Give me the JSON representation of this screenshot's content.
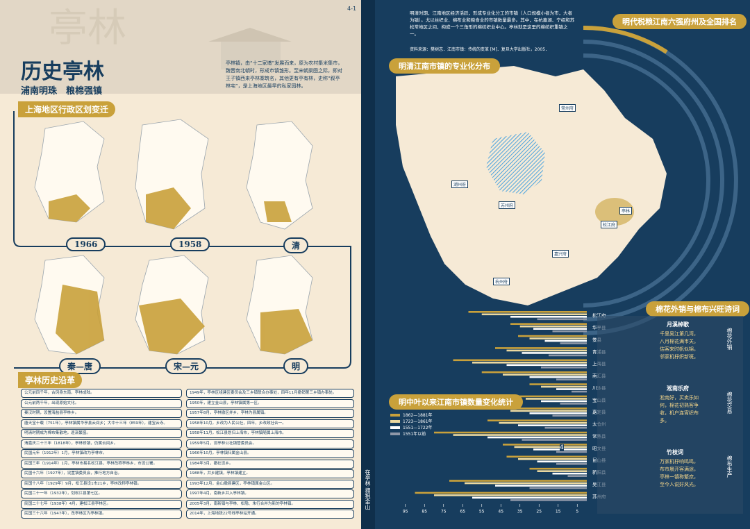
{
  "left_page": {
    "title": "历史亭林",
    "subtitle": "浦南明珠　粮棉强镇",
    "intro": "亭林镇，由“十二家墩”发展而来，原为农村集米集市，魏晋南北朝时，形成市镇雏形。至宋朝渠图之际，即对王子镇西来亭林寨筑名，其他更有亭有林，史称“叙亭林宅”，是上海地区最早的私家园林。",
    "page_number": "4-1",
    "maps_section": {
      "title": "上海地区行政区划变迁",
      "map_labels": [
        "1966",
        "1958",
        "清",
        "秦—唐",
        "宋—元",
        "明"
      ]
    },
    "history_section": {
      "title": "亭林历史沿革",
      "left_rows": [
        "公元前四千年，古冈身东南，亭林成陆。",
        "公元前两千年，出现原始文化。",
        "秦汉时期，设置海盐县亭林乡。",
        "唐天宝十载（751年），亭林镇属华亭县云间乡；大中十三年（859年），建宝云寺。",
        "明清时期成为棉布集散地，逐渐繁盛。",
        "清嘉庆二十三年（1818年），亭林修镇，仍属云间乡。",
        "民国元年（1912年）1月，亭林镇改为亭林市。",
        "民国三年（1914年）1月，亭林市易名松江县，亭林改称亭林乡，市设公署。",
        "民国十六年（1927年），设置镇委员会，推行地方自治。",
        "民国十八年（1929年）9月，松江县设1市21乡，亭林改称亭林镇。",
        "民国二十一年（1932年），划松江县第七区。",
        "民国二十七年（1938年）4月，建松江县亭林区。",
        "民国三十六年（1947年），改亭林区为亭林镇。"
      ],
      "right_rows": [
        "1949年，亭林区组建区委员会及三乡镇联合办事处，四年11月撤销第三乡镇办事处。",
        "1950年，建立金山县，亭林镇属第一区。",
        "1957年8月，亭林撤区并乡，亭林为县属镇。",
        "1958年10月，乡改为人民公社，四年，乡改政社合一。",
        "1958年11月，松江县划归上海市，亭林镇随属上海市。",
        "1959年5月，设亭林公社镇管委员会。",
        "1966年10月，亭林镇归属金山县。",
        "1984年3月，撤社设乡。",
        "1988年，并乡建镇，亭林镇建立。",
        "1993年12月，金山撤县建区，亭林镇属金山区。",
        "1997年4月，南新乡并入亭林镇。",
        "2005年3月，南新镇与亭林、松隐、朱行合并为新的亭林镇。",
        "2014年，上海地铁22号线亭林站开通。"
      ]
    }
  },
  "right_page": {
    "intro": "明清时期，江南地区经济活跃，形成专业化分工的市镇（人口规模小者为市，大者为镇）。尤以丝织业、棉布业和粮食业的市镇数量最多。其中，在杭嘉湖、宁绍和苏松常地区之间，构成一个三角形的棉纺织业中心。亭林就是这里的棉纺织重镇之一。",
    "source": "资料来源：樊树志．江南市镇：传统的变革 [M]．复旦大学出版社，2005．",
    "page_number": "4",
    "side_caption": "在亭林·拥抱金山",
    "tax_chart_title": "明代税粮江南六强府州及全国排名",
    "map_title": "明清江南市镇的专业化分布",
    "map_places": [
      "苏州府",
      "松江府",
      "嘉兴府",
      "杭州府",
      "湖州府",
      "常州府",
      "亭林"
    ],
    "poem_section": {
      "title": "棉花外销与棉布兴旺诗词",
      "poems": [
        {
          "title": "月溪棹歌",
          "side": "棉花外销",
          "text": "千里吴江第几湾，八月棉花满市关。估客来时帆似锦，邻家机杼织新斑。"
        },
        {
          "title": "淞南乐府",
          "side": "棉花交易",
          "text": "淞南好，买卖乐如何，棉花初熟客争收，机户连宵织布多。"
        },
        {
          "title": "竹枝词",
          "side": "棉布生产",
          "text": "万家机杼响鸣鸣，布市晨开客满途，亭林一镇称繁庶，至今人说好风光。"
        }
      ]
    }
  },
  "chart_data": {
    "type": "bar",
    "orientation": "horizontal",
    "title": "明中叶以来江南市镇数量变化统计",
    "categories": [
      "松江府",
      "华亭县",
      "娄县",
      "青浦县",
      "上海县",
      "南汇县",
      "川沙县",
      "宝山县",
      "嘉定县",
      "太仓州",
      "常熟县",
      "昭文县",
      "昆山县",
      "新阳县",
      "吴江县",
      "苏州府"
    ],
    "series": [
      {
        "name": "1862—1881年",
        "color": "#c9a13b",
        "values": [
          62,
          40,
          36,
          48,
          70,
          55,
          30,
          38,
          46,
          52,
          80,
          44,
          42,
          30,
          72,
          90
        ]
      },
      {
        "name": "1723—1861年",
        "color": "#ecd9a0",
        "values": [
          55,
          35,
          30,
          42,
          60,
          44,
          24,
          32,
          40,
          46,
          70,
          38,
          36,
          26,
          64,
          80
        ]
      },
      {
        "name": "1551—1722年",
        "color": "#ffffff",
        "values": [
          40,
          28,
          22,
          34,
          42,
          30,
          16,
          24,
          30,
          36,
          52,
          28,
          26,
          18,
          48,
          60
        ]
      },
      {
        "name": "1551年以前",
        "color": "#8f98a8",
        "values": [
          26,
          18,
          14,
          20,
          24,
          16,
          8,
          14,
          18,
          22,
          34,
          16,
          16,
          10,
          30,
          40
        ]
      }
    ],
    "xlim": [
      100,
      0
    ],
    "xticks": [
      95,
      85,
      75,
      65,
      55,
      45,
      35,
      25,
      15,
      5
    ]
  }
}
